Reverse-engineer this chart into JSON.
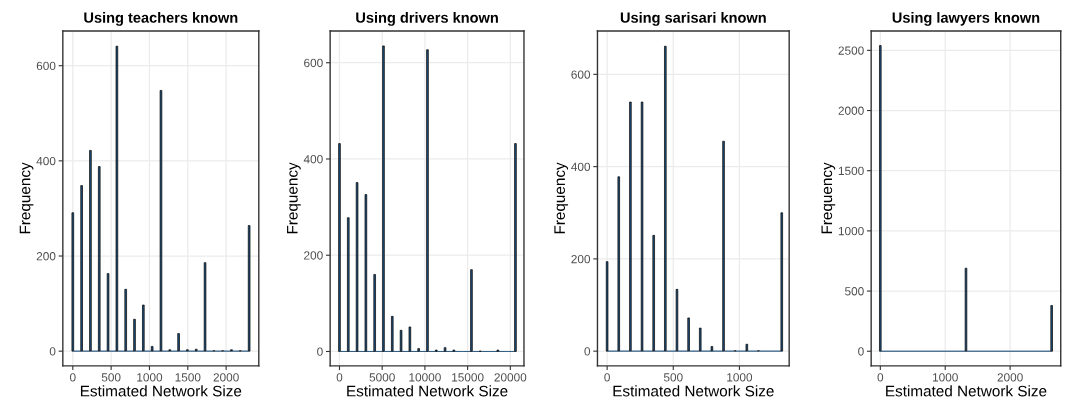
{
  "chart_data": [
    {
      "type": "histogram",
      "title": "Using teachers known",
      "xlabel": "Estimated Network Size",
      "ylabel": "Frequency",
      "color": "#1f4e79",
      "grid": true,
      "bins": [
        -11.5,
        11.5,
        103.5,
        126.5,
        218.5,
        241.5,
        333.5,
        356.5,
        448.5,
        471.5,
        563.5,
        586.5,
        678.5,
        701.5,
        793.5,
        816.5,
        908.5,
        931.5,
        1023.5,
        1046.5,
        1138.5,
        1161.5,
        1253.5,
        1276.5,
        1368.5,
        1391.5,
        1483.5,
        1506.5,
        1598.5,
        1621.5,
        1713.5,
        1736.5,
        1828.5,
        1851.5,
        1943.5,
        1966.5,
        2058.5,
        2081.5,
        2173.5,
        2196.5,
        2288.5,
        2311.5
      ],
      "values": [
        291,
        0,
        348,
        0,
        422,
        0,
        388,
        0,
        163,
        0,
        641,
        0,
        130,
        0,
        67,
        0,
        97,
        0,
        10,
        0,
        548,
        0,
        3,
        0,
        37,
        0,
        3,
        0,
        4,
        0,
        186,
        0,
        1,
        0,
        1,
        0,
        3,
        0,
        1,
        0,
        264
      ],
      "xlim": [
        -130,
        2426
      ],
      "xticks": [
        0,
        500,
        1000,
        1500,
        2000
      ],
      "ylim": [
        -31,
        673
      ],
      "yticks": [
        0,
        200,
        400,
        600
      ]
    },
    {
      "type": "histogram",
      "title": "Using drivers known",
      "xlabel": "Estimated Network Size",
      "ylabel": "Frequency",
      "color": "#1f4e79",
      "grid": true,
      "bins": [
        -103,
        103,
        927,
        1133,
        1957,
        2163,
        2987,
        3193,
        4017,
        4223,
        5047,
        5253,
        6077,
        6283,
        7107,
        7313,
        8137,
        8343,
        9167,
        9373,
        10197,
        10403,
        11227,
        11433,
        12257,
        12463,
        13287,
        13493,
        14317,
        14523,
        15347,
        15553,
        16377,
        16583,
        17407,
        17613,
        18437,
        18643,
        19467,
        19673,
        20497,
        20703
      ],
      "values": [
        432,
        0,
        278,
        0,
        351,
        0,
        326,
        0,
        160,
        0,
        635,
        0,
        73,
        0,
        44,
        0,
        51,
        0,
        6,
        0,
        627,
        0,
        3,
        0,
        8,
        0,
        3,
        0,
        0,
        0,
        170,
        0,
        1,
        0,
        0,
        0,
        3,
        0,
        0,
        0,
        432
      ],
      "xlim": [
        -1092,
        21598
      ],
      "xticks": [
        0,
        5000,
        10000,
        15000,
        20000
      ],
      "ylim": [
        -30,
        666
      ],
      "yticks": [
        0,
        200,
        400,
        600
      ]
    },
    {
      "type": "histogram",
      "title": "Using sarisari known",
      "xlabel": "Estimated Network Size",
      "ylabel": "Frequency",
      "color": "#1f4e79",
      "grid": true,
      "bins": [
        -6.5,
        6.5,
        81.5,
        94.5,
        169.5,
        182.5,
        257.5,
        270.5,
        345.5,
        358.5,
        433.5,
        446.5,
        521.5,
        534.5,
        609.5,
        622.5,
        697.5,
        710.5,
        785.5,
        798.5,
        873.5,
        886.5,
        961.5,
        974.5,
        1049.5,
        1062.5,
        1137.5,
        1150.5,
        1225.5,
        1238.5,
        1313.5,
        1326.5
      ],
      "values": [
        194,
        0,
        378,
        0,
        540,
        0,
        540,
        0,
        251,
        0,
        661,
        0,
        134,
        0,
        72,
        0,
        50,
        0,
        10,
        0,
        455,
        0,
        1,
        0,
        15,
        0,
        1,
        0,
        0,
        0,
        300
      ],
      "xlim": [
        -73,
        1376
      ],
      "xticks": [
        0,
        500,
        1000
      ],
      "ylim": [
        -32,
        694
      ],
      "yticks": [
        0,
        200,
        400,
        600
      ]
    },
    {
      "type": "histogram",
      "title": "Using lawyers known",
      "xlabel": "Estimated Network Size",
      "ylabel": "Frequency",
      "color": "#1f4e79",
      "grid": true,
      "bins": [
        -13,
        13,
        1307,
        1333,
        2627,
        2653
      ],
      "values": [
        2540,
        0,
        690,
        0,
        380
      ],
      "xlim": [
        -141,
        2780
      ],
      "xticks": [
        0,
        1000,
        2000
      ],
      "ylim": [
        -122,
        2661
      ],
      "yticks": [
        0,
        500,
        1000,
        1500,
        2000,
        2500
      ]
    }
  ]
}
